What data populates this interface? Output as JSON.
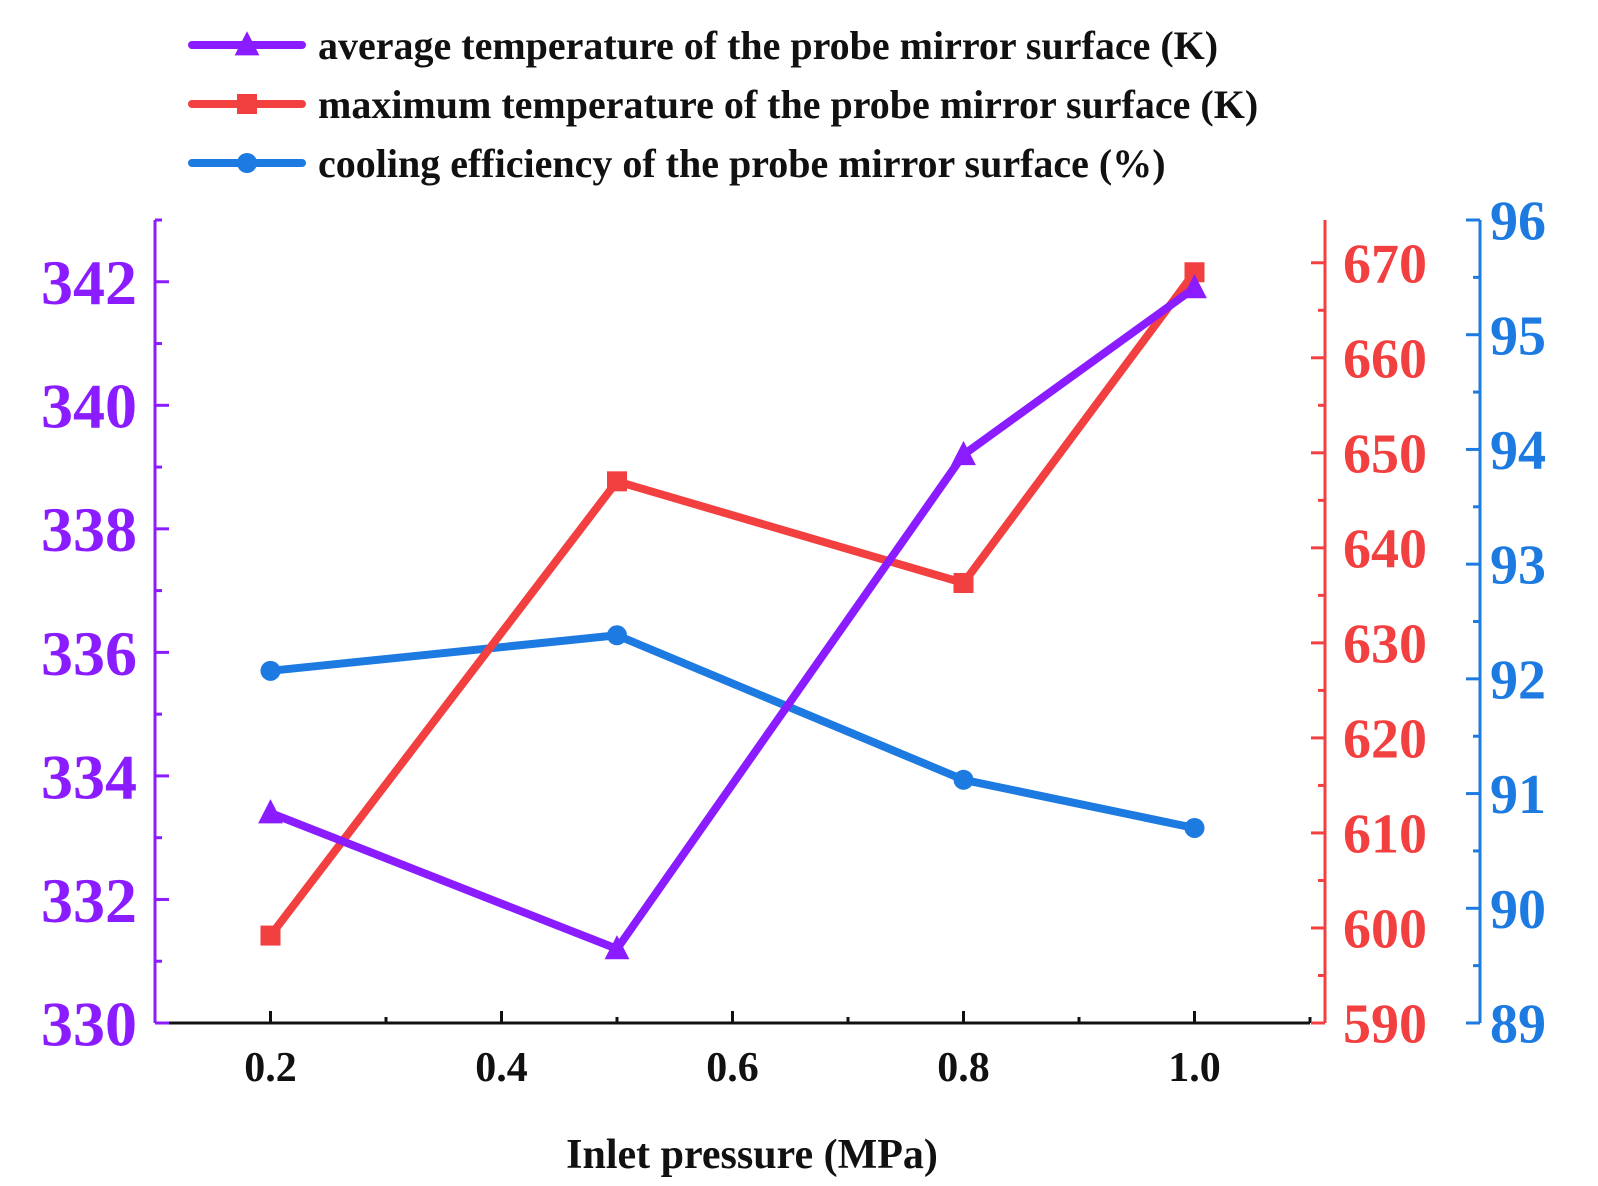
{
  "chart_data": {
    "type": "line",
    "title": "",
    "xlabel": "Inlet pressure (MPa)",
    "x": [
      0.2,
      0.5,
      0.8,
      1.0
    ],
    "xlim": [
      0.1,
      1.1
    ],
    "x_ticks": [
      0.2,
      0.4,
      0.6,
      0.8,
      1.0
    ],
    "x_tick_labels": [
      "0.2",
      "0.4",
      "0.6",
      "0.8",
      "1.0"
    ],
    "grid": false,
    "legend_position": "top",
    "axes": {
      "left": {
        "color": "#8a1cff",
        "ylim": [
          330,
          343
        ],
        "ticks": [
          330,
          332,
          334,
          336,
          338,
          340,
          342
        ],
        "tick_labels": [
          "330",
          "332",
          "334",
          "336",
          "338",
          "340",
          "342"
        ]
      },
      "right1": {
        "color": "#f24040",
        "ylim": [
          590,
          674.5
        ],
        "ticks": [
          590,
          600,
          610,
          620,
          630,
          640,
          650,
          660,
          670
        ],
        "tick_labels": [
          "590",
          "600",
          "610",
          "620",
          "630",
          "640",
          "650",
          "660",
          "670"
        ]
      },
      "right2": {
        "color": "#1c7ae0",
        "ylim": [
          89,
          96
        ],
        "ticks": [
          89,
          90,
          91,
          92,
          93,
          94,
          95,
          96
        ],
        "tick_labels": [
          "89",
          "90",
          "91",
          "92",
          "93",
          "94",
          "95",
          "96"
        ]
      }
    },
    "series": [
      {
        "name": "average temperature of the probe mirror surface (K)",
        "axis": "left",
        "color": "#8a1cff",
        "marker": "triangle",
        "values": [
          333.4,
          331.2,
          339.2,
          341.9
        ]
      },
      {
        "name": "maximum temperature of the probe mirror surface (K)",
        "axis": "right1",
        "color": "#f24040",
        "marker": "square",
        "values": [
          599.2,
          647.0,
          636.3,
          669.0
        ]
      },
      {
        "name": "cooling efficiency of the probe mirror surface (%)",
        "axis": "right2",
        "color": "#1c7ae0",
        "marker": "circle",
        "values": [
          92.07,
          92.38,
          91.12,
          90.7
        ]
      }
    ]
  }
}
